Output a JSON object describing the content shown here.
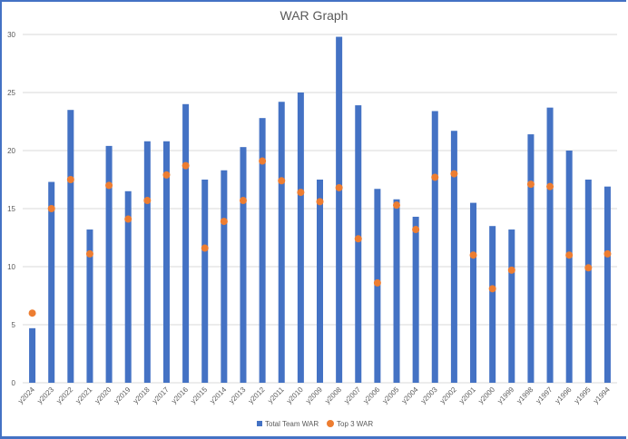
{
  "chart_data": {
    "type": "bar",
    "title": "WAR Graph",
    "xlabel": "",
    "ylabel": "",
    "ylim": [
      0,
      30
    ],
    "yticks": [
      0,
      5,
      10,
      15,
      20,
      25,
      30
    ],
    "grid": true,
    "legend_position": "bottom",
    "categories": [
      "y2024",
      "y2023",
      "y2022",
      "y2021",
      "y2020",
      "y2019",
      "y2018",
      "y2017",
      "y2016",
      "y2015",
      "y2014",
      "y2013",
      "y2012",
      "y2011",
      "y2010",
      "y2009",
      "y2008",
      "y2007",
      "y2006",
      "y2005",
      "y2004",
      "y2003",
      "y2002",
      "y2001",
      "y2000",
      "y1999",
      "y1998",
      "y1997",
      "y1996",
      "y1995",
      "y1994"
    ],
    "series": [
      {
        "name": "Total Team WAR",
        "type": "bar",
        "color": "#4472c4",
        "values": [
          4.7,
          17.3,
          23.5,
          13.2,
          20.4,
          16.5,
          20.8,
          20.8,
          24.0,
          17.5,
          18.3,
          20.3,
          22.8,
          24.2,
          25.0,
          17.5,
          29.8,
          23.9,
          16.7,
          15.8,
          14.3,
          23.4,
          21.7,
          15.5,
          13.5,
          13.2,
          21.4,
          23.7,
          20.0,
          17.5,
          16.9
        ]
      },
      {
        "name": "Top 3 WAR",
        "type": "scatter",
        "color": "#ed7d31",
        "values": [
          6.0,
          15.0,
          17.5,
          11.1,
          17.0,
          14.1,
          15.7,
          17.9,
          18.7,
          11.6,
          13.9,
          15.7,
          19.1,
          17.4,
          16.4,
          15.6,
          16.8,
          12.4,
          8.6,
          15.3,
          13.2,
          17.7,
          18.0,
          11.0,
          8.1,
          9.7,
          17.1,
          16.9,
          11.0,
          9.9,
          11.1
        ]
      }
    ]
  }
}
